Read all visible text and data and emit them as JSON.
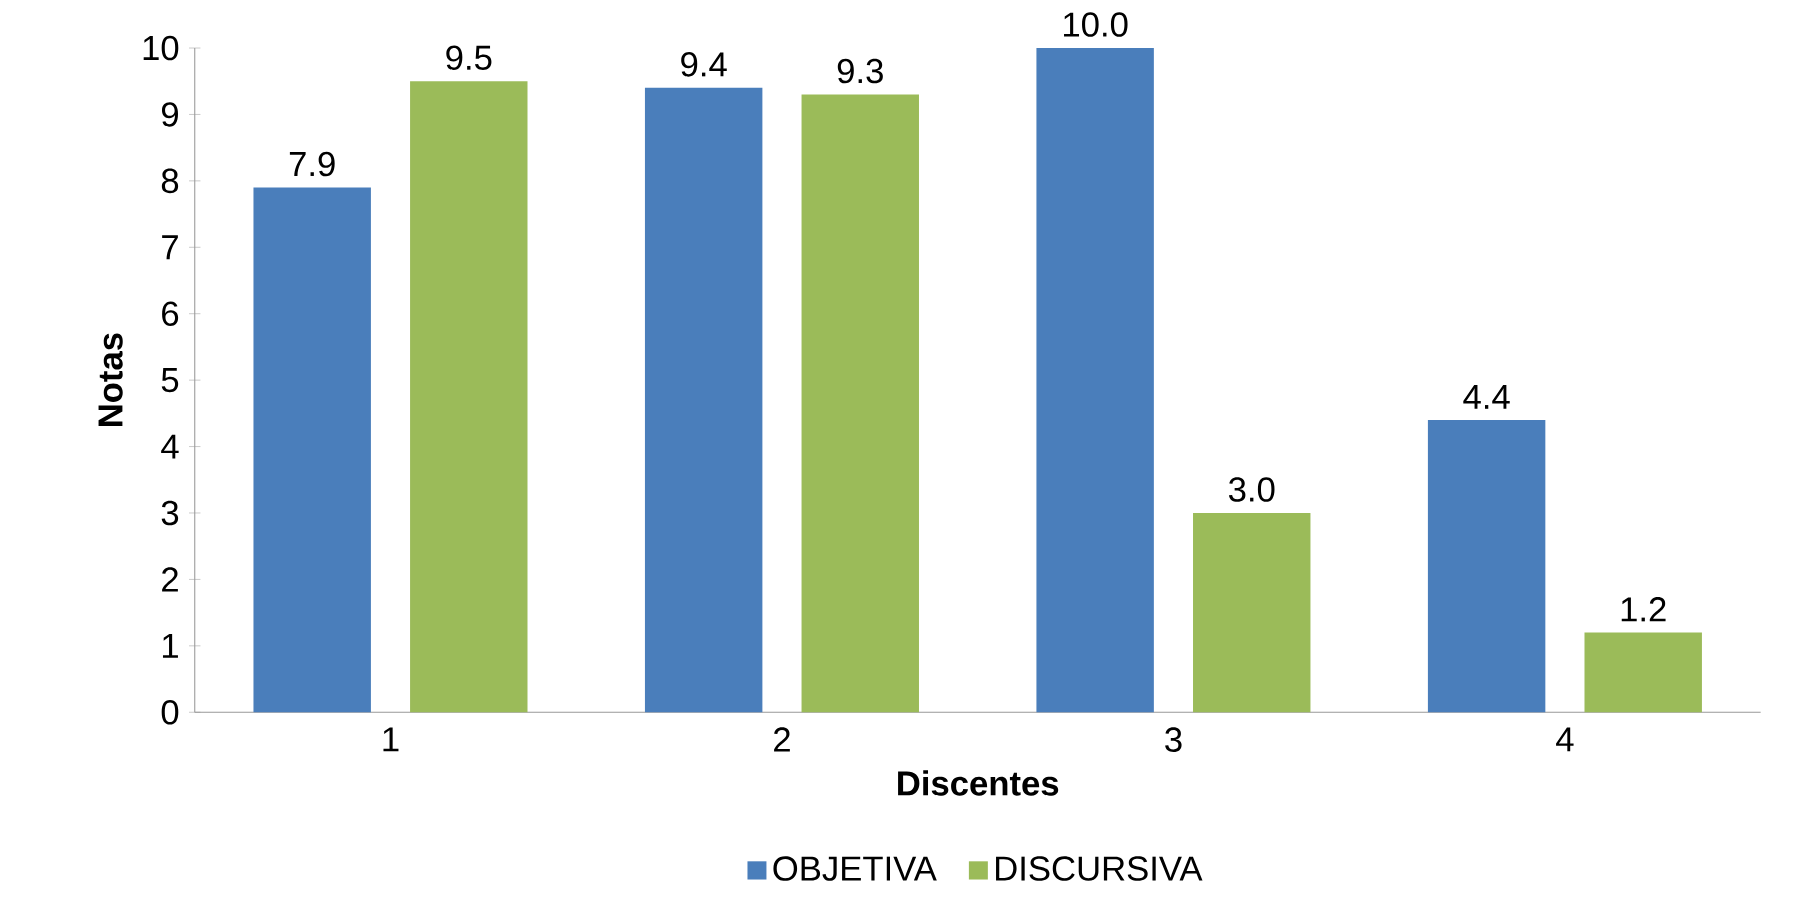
{
  "chart_data": {
    "type": "bar",
    "xlabel": "Discentes",
    "ylabel": "Notas",
    "categories": [
      "1",
      "2",
      "3",
      "4"
    ],
    "series": [
      {
        "name": "OBJETIVA",
        "color": "#4a7ebb",
        "values": [
          7.9,
          9.4,
          10.0,
          4.4
        ],
        "value_labels": [
          "7.9",
          "9.4",
          "10.0",
          "4.4"
        ]
      },
      {
        "name": "DISCURSIVA",
        "color": "#9bbb59",
        "values": [
          9.5,
          9.3,
          3.0,
          1.2
        ],
        "value_labels": [
          "9.5",
          "9.3",
          "3.0",
          "1.2"
        ]
      }
    ],
    "ylim": [
      0,
      10
    ],
    "yticks": [
      0,
      1,
      2,
      3,
      4,
      5,
      6,
      7,
      8,
      9,
      10
    ],
    "grid": false,
    "legend": "bottom"
  }
}
